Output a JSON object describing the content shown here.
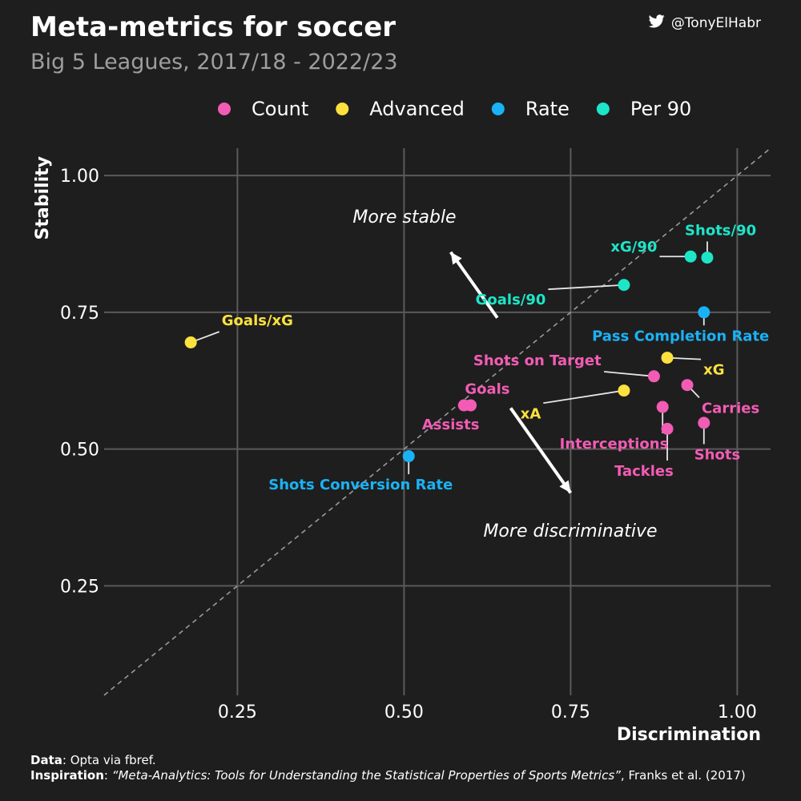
{
  "header": {
    "title": "Meta-metrics  for soccer",
    "subtitle": "Big 5 Leagues, 2017/18 - 2022/23",
    "handle": "@TonyElHabr"
  },
  "footer": {
    "data_label": "Data",
    "data_text": ": Opta via fbref.",
    "inspiration_label": "Inspiration",
    "inspiration_title": "“Meta-Analytics: Tools for Understanding the Statistical Properties of Sports Metrics”",
    "inspiration_text": ", Franks et al. (2017)"
  },
  "icons": {
    "handle": "twitter-bird-icon"
  },
  "chart_data": {
    "type": "scatter",
    "xlabel": "Discrimination",
    "ylabel": "Stability",
    "xlim": [
      0.05,
      1.05
    ],
    "ylim": [
      0.05,
      1.05
    ],
    "xticks": [
      0.25,
      0.5,
      0.75,
      1.0
    ],
    "yticks": [
      0.25,
      0.5,
      0.75,
      1.0
    ],
    "xtick_labels": [
      "0.25",
      "0.50",
      "0.75",
      "1.00"
    ],
    "ytick_labels": [
      "0.25",
      "0.50",
      "0.75",
      "1.00"
    ],
    "grid": true,
    "reference_line": "y = x",
    "legend_position": "top",
    "categories": [
      {
        "name": "Count",
        "color": "#f25cb4"
      },
      {
        "name": "Advanced",
        "color": "#fde13e"
      },
      {
        "name": "Rate",
        "color": "#1ab2f5"
      },
      {
        "name": "Per 90",
        "color": "#1de5c8"
      }
    ],
    "points": [
      {
        "label": "Goals/xG",
        "category": "Advanced",
        "x": 0.18,
        "y": 0.695,
        "label_x": 0.28,
        "label_y": 0.735
      },
      {
        "label": "Shots/90",
        "category": "Per 90",
        "x": 0.955,
        "y": 0.85,
        "label_x": 0.975,
        "label_y": 0.9
      },
      {
        "label": "xG/90",
        "category": "Per 90",
        "x": 0.93,
        "y": 0.852,
        "label_x": 0.845,
        "label_y": 0.87
      },
      {
        "label": "Goals/90",
        "category": "Per 90",
        "x": 0.83,
        "y": 0.8,
        "label_x": 0.66,
        "label_y": 0.773
      },
      {
        "label": "Pass Completion Rate",
        "category": "Rate",
        "x": 0.95,
        "y": 0.75,
        "label_x": 0.915,
        "label_y": 0.707
      },
      {
        "label": "xG",
        "category": "Advanced",
        "x": 0.895,
        "y": 0.667,
        "label_x": 0.965,
        "label_y": 0.645
      },
      {
        "label": "Shots on Target",
        "category": "Count",
        "x": 0.875,
        "y": 0.633,
        "label_x": 0.7,
        "label_y": 0.662
      },
      {
        "label": "Goals",
        "category": "Count",
        "x": 0.6,
        "y": 0.58,
        "label_x": 0.625,
        "label_y": 0.61
      },
      {
        "label": "xA",
        "category": "Advanced",
        "x": 0.83,
        "y": 0.607,
        "label_x": 0.69,
        "label_y": 0.565
      },
      {
        "label": "Carries",
        "category": "Count",
        "x": 0.925,
        "y": 0.617,
        "label_x": 0.99,
        "label_y": 0.575
      },
      {
        "label": "Assists",
        "category": "Count",
        "x": 0.59,
        "y": 0.58,
        "label_x": 0.57,
        "label_y": 0.545
      },
      {
        "label": "Interceptions",
        "category": "Count",
        "x": 0.888,
        "y": 0.577,
        "label_x": 0.815,
        "label_y": 0.51
      },
      {
        "label": "Tackles",
        "category": "Count",
        "x": 0.895,
        "y": 0.537,
        "label_x": 0.86,
        "label_y": 0.46
      },
      {
        "label": "Shots",
        "category": "Count",
        "x": 0.95,
        "y": 0.548,
        "label_x": 0.97,
        "label_y": 0.49
      },
      {
        "label": "Shots Conversion Rate",
        "category": "Rate",
        "x": 0.507,
        "y": 0.487,
        "label_x": 0.435,
        "label_y": 0.435
      }
    ],
    "annotations": {
      "more_stable": "More stable",
      "more_discriminative": "More discriminative"
    }
  }
}
